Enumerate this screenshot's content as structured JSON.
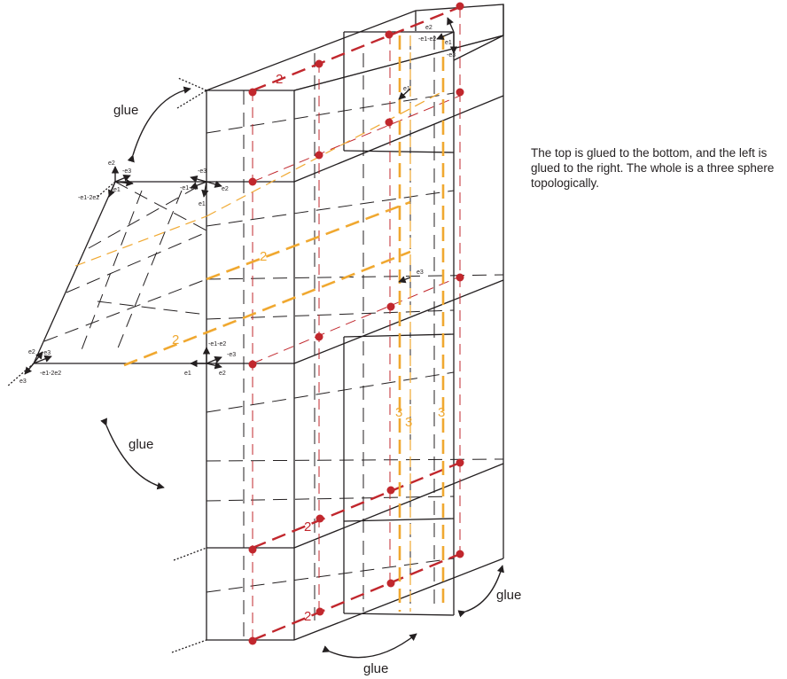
{
  "caption": "The top is glued to the bottom, and the left is glued to the right.  The whole is a three sphere topologically.",
  "glue_labels": [
    "glue",
    "glue",
    "glue",
    "glue"
  ],
  "multiplicity_labels": {
    "red": [
      "2",
      "2",
      "2"
    ],
    "orange": [
      "2",
      "2",
      "3",
      "3",
      "3"
    ]
  },
  "vector_labels": {
    "top": [
      "e2",
      "-e1-e2",
      "e1",
      "-e3",
      "e1"
    ],
    "left_upper": [
      "e2",
      "-e3",
      "e1",
      "-e1-2e2",
      "-e3",
      "-e1-e2",
      "e2",
      "e1"
    ],
    "left_lower": [
      "e2",
      "-e3",
      "-e1-2e2",
      "e3",
      "-e1-e2",
      "-e3",
      "e1",
      "e2"
    ],
    "middle": [
      "e3"
    ]
  },
  "colors": {
    "black": "#231f20",
    "red": "#c1272d",
    "orange": "#f0a830"
  }
}
